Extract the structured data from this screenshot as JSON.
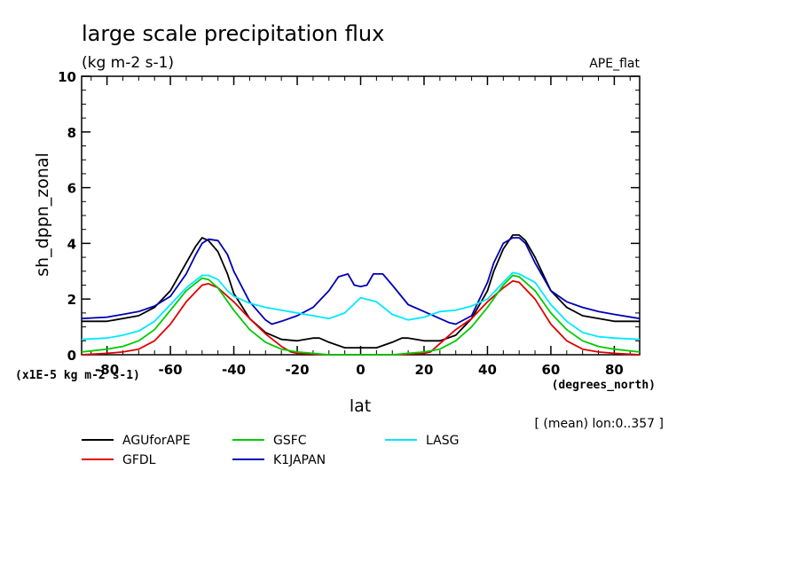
{
  "chart_data": {
    "type": "line",
    "title": "large scale precipitation flux",
    "units": "(kg m-2 s-1)",
    "experiment": "APE_flat",
    "ylabel": "sh_dppn_zonal",
    "xlabel": "lat",
    "x_units": "(degrees_north)",
    "y_scale_note": "(x1E-5 kg m-2 s-1)",
    "mean_note": "[ (mean) lon:0..357 ]",
    "xlim": [
      -88,
      88
    ],
    "ylim": [
      0,
      10
    ],
    "x_ticks": [
      -80,
      -60,
      -40,
      -20,
      0,
      20,
      40,
      60,
      80
    ],
    "y_ticks": [
      0,
      2,
      4,
      6,
      8,
      10
    ],
    "grid": false,
    "legend_position": "below",
    "series": [
      {
        "name": "AGUforAPE",
        "color": "#000000",
        "x": [
          -88,
          -80,
          -70,
          -65,
          -60,
          -55,
          -52,
          -50,
          -48,
          -45,
          -42,
          -40,
          -35,
          -30,
          -25,
          -20,
          -15,
          -13,
          -10,
          -5,
          0,
          5,
          10,
          13,
          15,
          20,
          25,
          30,
          35,
          40,
          42,
          45,
          48,
          50,
          52,
          55,
          60,
          65,
          70,
          80,
          88
        ],
        "y": [
          1.2,
          1.2,
          1.4,
          1.7,
          2.3,
          3.3,
          3.9,
          4.2,
          4.1,
          3.7,
          2.9,
          2.2,
          1.3,
          0.8,
          0.55,
          0.5,
          0.6,
          0.6,
          0.45,
          0.25,
          0.25,
          0.25,
          0.45,
          0.6,
          0.6,
          0.5,
          0.5,
          0.7,
          1.3,
          2.3,
          3.0,
          3.8,
          4.3,
          4.3,
          4.1,
          3.5,
          2.3,
          1.7,
          1.4,
          1.2,
          1.2
        ]
      },
      {
        "name": "GFDL",
        "color": "#e00000",
        "x": [
          -88,
          -80,
          -75,
          -70,
          -65,
          -60,
          -55,
          -50,
          -48,
          -45,
          -40,
          -35,
          -30,
          -25,
          -22,
          -20,
          -10,
          0,
          10,
          20,
          22,
          25,
          30,
          35,
          40,
          45,
          48,
          50,
          55,
          60,
          65,
          70,
          75,
          80,
          88
        ],
        "y": [
          0.0,
          0.05,
          0.1,
          0.2,
          0.5,
          1.1,
          1.9,
          2.5,
          2.55,
          2.4,
          1.9,
          1.3,
          0.75,
          0.3,
          0.1,
          0.05,
          0.0,
          0.0,
          0.0,
          0.05,
          0.1,
          0.4,
          0.9,
          1.3,
          1.9,
          2.4,
          2.65,
          2.6,
          2.0,
          1.1,
          0.5,
          0.2,
          0.1,
          0.05,
          0.0
        ]
      },
      {
        "name": "GSFC",
        "color": "#00cc00",
        "x": [
          -88,
          -80,
          -75,
          -70,
          -65,
          -60,
          -55,
          -50,
          -48,
          -45,
          -40,
          -35,
          -30,
          -25,
          -20,
          -15,
          -10,
          0,
          10,
          15,
          20,
          25,
          30,
          35,
          40,
          45,
          48,
          50,
          55,
          60,
          65,
          70,
          75,
          80,
          88
        ],
        "y": [
          0.1,
          0.2,
          0.3,
          0.5,
          0.9,
          1.6,
          2.3,
          2.75,
          2.7,
          2.4,
          1.6,
          0.9,
          0.45,
          0.2,
          0.1,
          0.05,
          0.0,
          0.0,
          0.0,
          0.05,
          0.1,
          0.2,
          0.5,
          1.0,
          1.7,
          2.5,
          2.85,
          2.8,
          2.3,
          1.5,
          0.9,
          0.5,
          0.3,
          0.2,
          0.1
        ]
      },
      {
        "name": "K1JAPAN",
        "color": "#0000b4",
        "x": [
          -88,
          -80,
          -75,
          -70,
          -65,
          -60,
          -55,
          -52,
          -50,
          -48,
          -45,
          -42,
          -40,
          -35,
          -30,
          -28,
          -25,
          -20,
          -15,
          -10,
          -7,
          -4,
          -2,
          0,
          2,
          4,
          7,
          10,
          15,
          20,
          25,
          28,
          30,
          35,
          40,
          42,
          45,
          48,
          50,
          52,
          55,
          60,
          65,
          70,
          75,
          80,
          88
        ],
        "y": [
          1.3,
          1.35,
          1.45,
          1.55,
          1.75,
          2.1,
          2.9,
          3.6,
          4.0,
          4.15,
          4.1,
          3.6,
          3.0,
          1.9,
          1.25,
          1.1,
          1.2,
          1.4,
          1.7,
          2.3,
          2.8,
          2.9,
          2.5,
          2.45,
          2.5,
          2.9,
          2.9,
          2.5,
          1.8,
          1.55,
          1.3,
          1.15,
          1.1,
          1.4,
          2.6,
          3.3,
          4.0,
          4.2,
          4.2,
          4.0,
          3.3,
          2.3,
          1.9,
          1.7,
          1.55,
          1.45,
          1.3
        ]
      },
      {
        "name": "LASG",
        "color": "#00e8ff",
        "x": [
          -88,
          -80,
          -75,
          -70,
          -65,
          -60,
          -55,
          -50,
          -48,
          -45,
          -42,
          -40,
          -35,
          -30,
          -25,
          -20,
          -15,
          -10,
          -5,
          0,
          5,
          10,
          15,
          20,
          25,
          30,
          35,
          40,
          45,
          48,
          50,
          55,
          60,
          65,
          70,
          75,
          80,
          88
        ],
        "y": [
          0.55,
          0.6,
          0.7,
          0.85,
          1.2,
          1.8,
          2.4,
          2.85,
          2.85,
          2.7,
          2.3,
          2.1,
          1.85,
          1.7,
          1.6,
          1.5,
          1.4,
          1.3,
          1.5,
          2.05,
          1.9,
          1.45,
          1.25,
          1.35,
          1.55,
          1.6,
          1.75,
          2.0,
          2.6,
          2.95,
          2.9,
          2.6,
          1.8,
          1.2,
          0.8,
          0.65,
          0.6,
          0.55
        ]
      }
    ]
  }
}
